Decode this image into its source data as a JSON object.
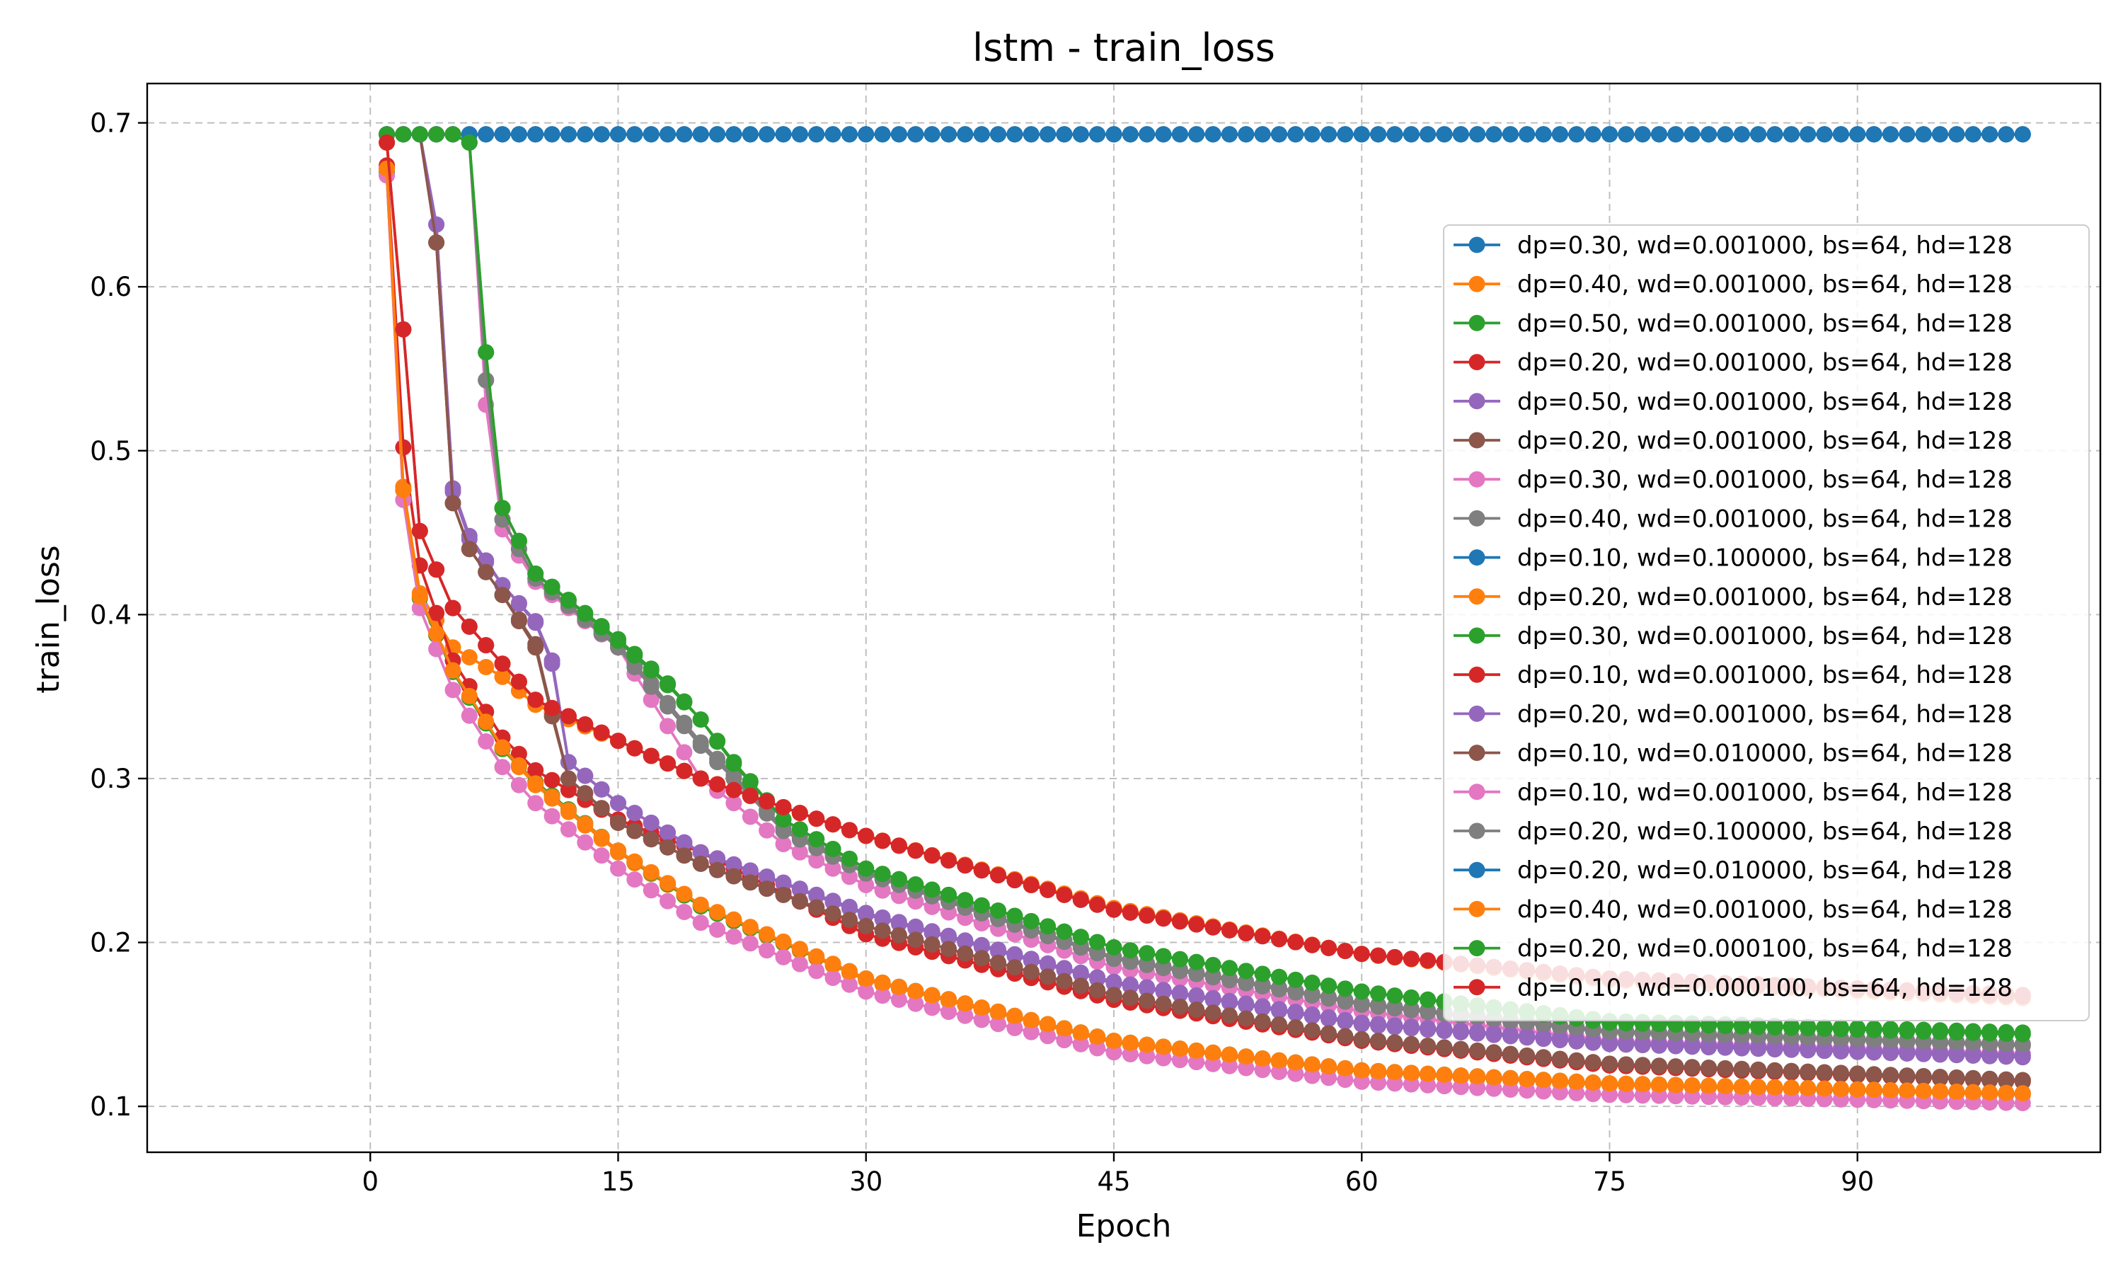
{
  "chart_data": {
    "type": "line",
    "title": "lstm - train_loss",
    "xlabel": "Epoch",
    "ylabel": "train_loss",
    "xlim": [
      -13.5,
      104.7
    ],
    "ylim": [
      0.072,
      0.724
    ],
    "xticks": [
      0,
      15,
      30,
      45,
      60,
      75,
      90
    ],
    "yticks": [
      0.1,
      0.2,
      0.3,
      0.4,
      0.5,
      0.6,
      0.7
    ],
    "xtick_labels": [
      "0",
      "15",
      "30",
      "45",
      "60",
      "75",
      "90"
    ],
    "ytick_labels": [
      "0.1",
      "0.2",
      "0.3",
      "0.4",
      "0.5",
      "0.6",
      "0.7"
    ],
    "grid": true,
    "legend_position": "center-right",
    "marker": "circle",
    "epochs": [
      1,
      100
    ],
    "series": [
      {
        "name": "dp=0.30, wd=0.001000, bs=64, hd=128",
        "color": "#1f77b4",
        "anchors": [
          [
            1,
            0.693
          ],
          [
            100,
            0.693
          ]
        ]
      },
      {
        "name": "dp=0.40, wd=0.001000, bs=64, hd=128",
        "color": "#ff7f0e",
        "anchors": [
          [
            1,
            0.672
          ],
          [
            2,
            0.476
          ],
          [
            3,
            0.41
          ],
          [
            5,
            0.365
          ],
          [
            8,
            0.318
          ],
          [
            10,
            0.296
          ],
          [
            15,
            0.255
          ],
          [
            20,
            0.222
          ],
          [
            30,
            0.177
          ],
          [
            45,
            0.139
          ],
          [
            60,
            0.121
          ],
          [
            75,
            0.113
          ],
          [
            100,
            0.107
          ]
        ]
      },
      {
        "name": "dp=0.50, wd=0.001000, bs=64, hd=128",
        "color": "#2ca02c",
        "anchors": [
          [
            6,
            0.688
          ],
          [
            7,
            0.56
          ],
          [
            8,
            0.465
          ],
          [
            10,
            0.425
          ],
          [
            15,
            0.385
          ],
          [
            18,
            0.358
          ],
          [
            20,
            0.336
          ],
          [
            22,
            0.31
          ],
          [
            25,
            0.275
          ],
          [
            30,
            0.245
          ],
          [
            45,
            0.197
          ],
          [
            60,
            0.17
          ],
          [
            75,
            0.152
          ],
          [
            100,
            0.145
          ]
        ]
      },
      {
        "name": "dp=0.20, wd=0.001000, bs=64, hd=128",
        "color": "#d62728",
        "anchors": [
          [
            1,
            0.688
          ],
          [
            2,
            0.574
          ],
          [
            3,
            0.451
          ],
          [
            5,
            0.404
          ],
          [
            8,
            0.37
          ],
          [
            10,
            0.348
          ],
          [
            15,
            0.323
          ],
          [
            20,
            0.3
          ],
          [
            30,
            0.265
          ],
          [
            45,
            0.22
          ],
          [
            60,
            0.193
          ],
          [
            75,
            0.178
          ],
          [
            100,
            0.168
          ]
        ]
      },
      {
        "name": "dp=0.50, wd=0.001000, bs=64, hd=128",
        "color": "#9467bd",
        "anchors": [
          [
            3,
            0.693
          ],
          [
            4,
            0.638
          ],
          [
            5,
            0.477
          ],
          [
            6,
            0.448
          ],
          [
            8,
            0.418
          ],
          [
            10,
            0.395
          ],
          [
            11,
            0.37
          ],
          [
            12,
            0.31
          ],
          [
            15,
            0.285
          ],
          [
            20,
            0.255
          ],
          [
            30,
            0.217
          ],
          [
            45,
            0.175
          ],
          [
            60,
            0.15
          ],
          [
            75,
            0.138
          ],
          [
            100,
            0.13
          ]
        ]
      },
      {
        "name": "dp=0.20, wd=0.001000, bs=64, hd=128",
        "color": "#8c564b",
        "anchors": [
          [
            3,
            0.693
          ],
          [
            4,
            0.627
          ],
          [
            5,
            0.468
          ],
          [
            6,
            0.44
          ],
          [
            8,
            0.412
          ],
          [
            10,
            0.382
          ],
          [
            11,
            0.34
          ],
          [
            12,
            0.3
          ],
          [
            15,
            0.273
          ],
          [
            20,
            0.248
          ],
          [
            30,
            0.21
          ],
          [
            45,
            0.168
          ],
          [
            60,
            0.14
          ],
          [
            75,
            0.125
          ],
          [
            100,
            0.115
          ]
        ]
      },
      {
        "name": "dp=0.30, wd=0.001000, bs=64, hd=128",
        "color": "#e377c2",
        "anchors": [
          [
            6,
            0.688
          ],
          [
            7,
            0.528
          ],
          [
            8,
            0.452
          ],
          [
            10,
            0.42
          ],
          [
            15,
            0.38
          ],
          [
            20,
            0.3
          ],
          [
            22,
            0.285
          ],
          [
            25,
            0.26
          ],
          [
            30,
            0.235
          ],
          [
            45,
            0.185
          ],
          [
            60,
            0.158
          ],
          [
            75,
            0.14
          ],
          [
            100,
            0.132
          ]
        ]
      },
      {
        "name": "dp=0.40, wd=0.001000, bs=64, hd=128",
        "color": "#7f7f7f",
        "anchors": [
          [
            6,
            0.688
          ],
          [
            7,
            0.543
          ],
          [
            8,
            0.458
          ],
          [
            10,
            0.422
          ],
          [
            15,
            0.38
          ],
          [
            20,
            0.32
          ],
          [
            22,
            0.3
          ],
          [
            25,
            0.268
          ],
          [
            30,
            0.242
          ],
          [
            45,
            0.19
          ],
          [
            60,
            0.162
          ],
          [
            75,
            0.145
          ],
          [
            100,
            0.137
          ]
        ]
      },
      {
        "name": "dp=0.10, wd=0.100000, bs=64, hd=128",
        "color": "#1f77b4",
        "anchors": [
          [
            1,
            0.693
          ],
          [
            100,
            0.693
          ]
        ]
      },
      {
        "name": "dp=0.20, wd=0.001000, bs=64, hd=128",
        "color": "#ff7f0e",
        "anchors": [
          [
            1,
            0.668
          ],
          [
            2,
            0.478
          ],
          [
            3,
            0.413
          ],
          [
            5,
            0.38
          ],
          [
            8,
            0.362
          ],
          [
            10,
            0.345
          ],
          [
            15,
            0.323
          ],
          [
            20,
            0.3
          ],
          [
            30,
            0.265
          ],
          [
            45,
            0.221
          ],
          [
            60,
            0.193
          ],
          [
            75,
            0.177
          ],
          [
            100,
            0.166
          ]
        ]
      },
      {
        "name": "dp=0.30, wd=0.001000, bs=64, hd=128",
        "color": "#2ca02c",
        "anchors": [
          [
            1,
            0.67
          ],
          [
            2,
            0.476
          ],
          [
            3,
            0.41
          ],
          [
            5,
            0.365
          ],
          [
            8,
            0.318
          ],
          [
            10,
            0.298
          ],
          [
            15,
            0.256
          ],
          [
            20,
            0.222
          ],
          [
            30,
            0.178
          ],
          [
            45,
            0.14
          ],
          [
            60,
            0.122
          ],
          [
            75,
            0.114
          ],
          [
            100,
            0.108
          ]
        ]
      },
      {
        "name": "dp=0.10, wd=0.001000, bs=64, hd=128",
        "color": "#d62728",
        "anchors": [
          [
            1,
            0.674
          ],
          [
            2,
            0.502
          ],
          [
            3,
            0.43
          ],
          [
            5,
            0.372
          ],
          [
            8,
            0.325
          ],
          [
            10,
            0.305
          ],
          [
            15,
            0.275
          ],
          [
            20,
            0.255
          ],
          [
            30,
            0.205
          ],
          [
            45,
            0.165
          ],
          [
            60,
            0.14
          ],
          [
            75,
            0.125
          ],
          [
            100,
            0.116
          ]
        ]
      },
      {
        "name": "dp=0.20, wd=0.001000, bs=64, hd=128",
        "color": "#9467bd",
        "anchors": [
          [
            3,
            0.693
          ],
          [
            4,
            0.638
          ],
          [
            5,
            0.475
          ],
          [
            6,
            0.446
          ],
          [
            8,
            0.418
          ],
          [
            10,
            0.396
          ],
          [
            11,
            0.372
          ],
          [
            12,
            0.31
          ],
          [
            15,
            0.285
          ],
          [
            20,
            0.255
          ],
          [
            30,
            0.218
          ],
          [
            45,
            0.176
          ],
          [
            60,
            0.151
          ],
          [
            75,
            0.139
          ],
          [
            100,
            0.131
          ]
        ]
      },
      {
        "name": "dp=0.10, wd=0.010000, bs=64, hd=128",
        "color": "#8c564b",
        "anchors": [
          [
            3,
            0.693
          ],
          [
            4,
            0.627
          ],
          [
            5,
            0.468
          ],
          [
            6,
            0.44
          ],
          [
            8,
            0.412
          ],
          [
            10,
            0.38
          ],
          [
            11,
            0.338
          ],
          [
            12,
            0.3
          ],
          [
            15,
            0.273
          ],
          [
            20,
            0.248
          ],
          [
            30,
            0.21
          ],
          [
            45,
            0.168
          ],
          [
            60,
            0.141
          ],
          [
            75,
            0.126
          ],
          [
            100,
            0.116
          ]
        ]
      },
      {
        "name": "dp=0.10, wd=0.001000, bs=64, hd=128",
        "color": "#e377c2",
        "anchors": [
          [
            1,
            0.668
          ],
          [
            2,
            0.47
          ],
          [
            3,
            0.404
          ],
          [
            5,
            0.354
          ],
          [
            8,
            0.307
          ],
          [
            10,
            0.285
          ],
          [
            15,
            0.245
          ],
          [
            20,
            0.212
          ],
          [
            30,
            0.17
          ],
          [
            45,
            0.133
          ],
          [
            60,
            0.115
          ],
          [
            75,
            0.107
          ],
          [
            100,
            0.102
          ]
        ]
      },
      {
        "name": "dp=0.20, wd=0.100000, bs=64, hd=128",
        "color": "#7f7f7f",
        "anchors": [
          [
            6,
            0.688
          ],
          [
            7,
            0.543
          ],
          [
            8,
            0.458
          ],
          [
            10,
            0.422
          ],
          [
            15,
            0.382
          ],
          [
            20,
            0.322
          ],
          [
            22,
            0.302
          ],
          [
            25,
            0.27
          ],
          [
            30,
            0.243
          ],
          [
            45,
            0.191
          ],
          [
            60,
            0.163
          ],
          [
            75,
            0.146
          ],
          [
            100,
            0.138
          ]
        ]
      },
      {
        "name": "dp=0.20, wd=0.010000, bs=64, hd=128",
        "color": "#1f77b4",
        "anchors": [
          [
            1,
            0.693
          ],
          [
            100,
            0.693
          ]
        ]
      },
      {
        "name": "dp=0.40, wd=0.001000, bs=64, hd=128",
        "color": "#ff7f0e",
        "anchors": [
          [
            1,
            0.672
          ],
          [
            2,
            0.476
          ],
          [
            3,
            0.411
          ],
          [
            5,
            0.366
          ],
          [
            8,
            0.319
          ],
          [
            10,
            0.297
          ],
          [
            15,
            0.256
          ],
          [
            20,
            0.223
          ],
          [
            30,
            0.178
          ],
          [
            45,
            0.14
          ],
          [
            60,
            0.122
          ],
          [
            75,
            0.114
          ],
          [
            100,
            0.108
          ]
        ]
      },
      {
        "name": "dp=0.20, wd=0.000100, bs=64, hd=128",
        "color": "#2ca02c",
        "anchors": [
          [
            6,
            0.688
          ],
          [
            7,
            0.56
          ],
          [
            8,
            0.465
          ],
          [
            10,
            0.425
          ],
          [
            15,
            0.384
          ],
          [
            18,
            0.357
          ],
          [
            20,
            0.336
          ],
          [
            22,
            0.309
          ],
          [
            25,
            0.275
          ],
          [
            30,
            0.245
          ],
          [
            45,
            0.197
          ],
          [
            60,
            0.17
          ],
          [
            75,
            0.151
          ],
          [
            100,
            0.144
          ]
        ]
      },
      {
        "name": "dp=0.10, wd=0.000100, bs=64, hd=128",
        "color": "#d62728",
        "anchors": [
          [
            1,
            0.688
          ],
          [
            2,
            0.574
          ],
          [
            3,
            0.451
          ],
          [
            5,
            0.404
          ],
          [
            8,
            0.37
          ],
          [
            10,
            0.348
          ],
          [
            15,
            0.323
          ],
          [
            20,
            0.3
          ],
          [
            30,
            0.265
          ],
          [
            45,
            0.22
          ],
          [
            60,
            0.193
          ],
          [
            75,
            0.178
          ],
          [
            100,
            0.167
          ]
        ]
      }
    ]
  }
}
